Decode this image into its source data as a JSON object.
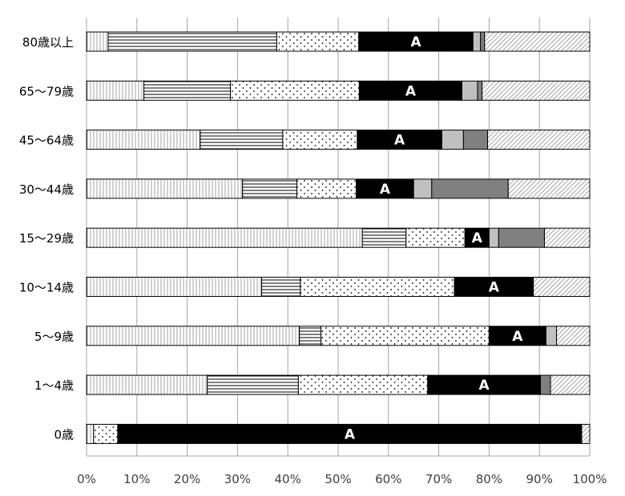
{
  "chart_data": {
    "type": "bar",
    "orientation": "horizontal",
    "stacked": true,
    "normalized": true,
    "categories": [
      "80歳以上",
      "65〜79歳",
      "45〜64歳",
      "30〜44歳",
      "15〜29歳",
      "10〜14歳",
      "5〜9歳",
      "1〜4歳",
      "0歳"
    ],
    "series": [
      {
        "values": [
          4.3,
          11.4,
          22.6,
          31.0,
          54.8,
          34.8,
          42.3,
          24.0,
          1.4
        ]
      },
      {
        "values": [
          33.5,
          17.2,
          16.4,
          10.8,
          8.7,
          7.7,
          4.3,
          18.1,
          0.0
        ]
      },
      {
        "values": [
          16.3,
          25.6,
          14.8,
          11.8,
          11.7,
          30.6,
          33.4,
          25.7,
          4.8
        ]
      },
      {
        "values": [
          22.7,
          20.4,
          16.8,
          11.4,
          4.8,
          15.7,
          11.3,
          22.4,
          92.2
        ]
      },
      {
        "values": [
          1.5,
          3.1,
          4.3,
          3.6,
          1.9,
          0.0,
          2.1,
          0.0,
          0.0
        ]
      },
      {
        "values": [
          0.8,
          0.9,
          4.8,
          15.2,
          9.1,
          0.0,
          0.0,
          2.0,
          0.0
        ]
      },
      {
        "values": [
          20.9,
          21.4,
          20.3,
          16.2,
          9.0,
          11.2,
          6.6,
          7.8,
          1.6
        ]
      }
    ],
    "bar_labels": {
      "series_index": 3,
      "text": "A"
    },
    "x_ticks": [
      "0%",
      "10%",
      "20%",
      "30%",
      "40%",
      "50%",
      "60%",
      "70%",
      "80%",
      "90%",
      "100%"
    ],
    "xlim": [
      0,
      100
    ],
    "grid": "vertical",
    "legend": "none"
  },
  "styles": {
    "fills": [
      "vertical-lines",
      "horizontal-lines",
      "dots",
      "#000000",
      "#c0c0c0",
      "#808080",
      "diagonal-hatch"
    ],
    "grid_color": "#a6a6a6"
  }
}
